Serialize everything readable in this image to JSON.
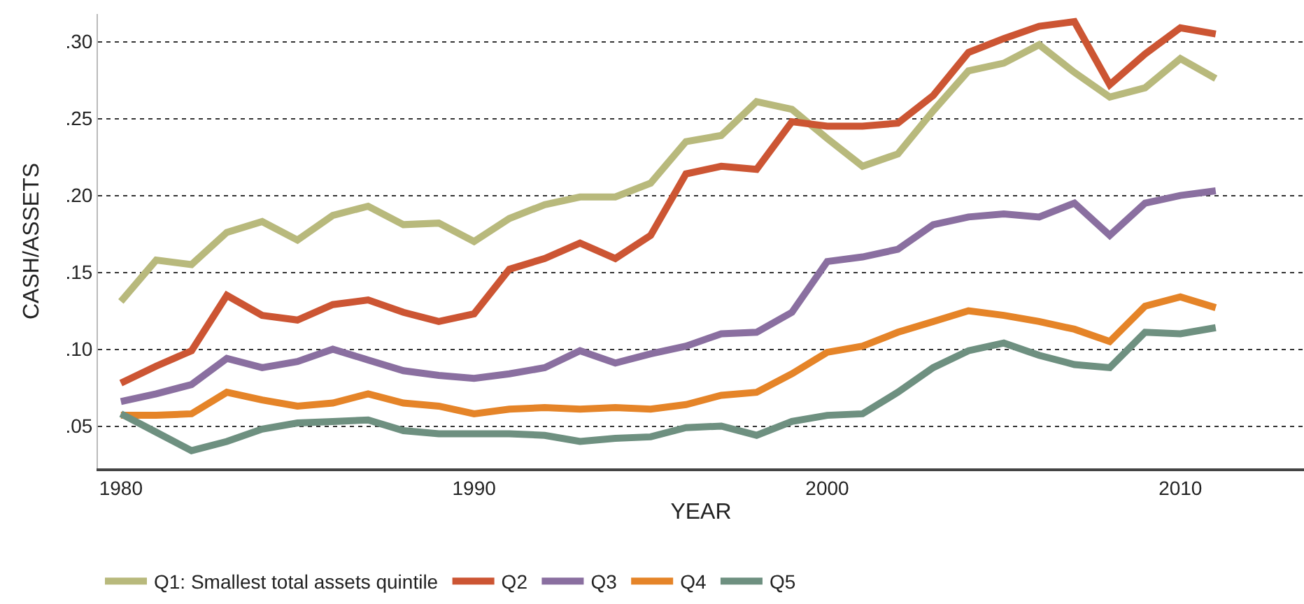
{
  "chart_data": {
    "type": "line",
    "xlabel": "YEAR",
    "ylabel": "CASH/ASSETS",
    "x": [
      1980,
      1981,
      1982,
      1983,
      1984,
      1985,
      1986,
      1987,
      1988,
      1989,
      1990,
      1991,
      1992,
      1993,
      1994,
      1995,
      1996,
      1997,
      1998,
      1999,
      2000,
      2001,
      2002,
      2003,
      2004,
      2005,
      2006,
      2007,
      2008,
      2009,
      2010,
      2011
    ],
    "series": [
      {
        "name": "Q1: Smallest total assets quintile",
        "color": "#b8b97c",
        "values": [
          0.131,
          0.158,
          0.155,
          0.176,
          0.183,
          0.171,
          0.187,
          0.193,
          0.181,
          0.182,
          0.17,
          0.185,
          0.194,
          0.199,
          0.199,
          0.208,
          0.235,
          0.239,
          0.261,
          0.256,
          0.237,
          0.219,
          0.227,
          0.255,
          0.281,
          0.286,
          0.298,
          0.28,
          0.264,
          0.27,
          0.289,
          0.276
        ]
      },
      {
        "name": "Q2",
        "color": "#cc5533",
        "values": [
          0.078,
          0.089,
          0.099,
          0.135,
          0.122,
          0.119,
          0.129,
          0.132,
          0.124,
          0.118,
          0.123,
          0.152,
          0.159,
          0.169,
          0.159,
          0.174,
          0.214,
          0.219,
          0.217,
          0.248,
          0.245,
          0.245,
          0.247,
          0.265,
          0.293,
          0.302,
          0.31,
          0.313,
          0.272,
          0.292,
          0.309,
          0.305
        ]
      },
      {
        "name": "Q3",
        "color": "#8a6fa0",
        "values": [
          0.066,
          0.071,
          0.077,
          0.094,
          0.088,
          0.092,
          0.1,
          0.093,
          0.086,
          0.083,
          0.081,
          0.084,
          0.088,
          0.099,
          0.091,
          0.097,
          0.102,
          0.11,
          0.111,
          0.124,
          0.157,
          0.16,
          0.165,
          0.181,
          0.186,
          0.188,
          0.186,
          0.195,
          0.174,
          0.195,
          0.2,
          0.203
        ]
      },
      {
        "name": "Q4",
        "color": "#e58428",
        "values": [
          0.057,
          0.057,
          0.058,
          0.072,
          0.067,
          0.063,
          0.065,
          0.071,
          0.065,
          0.063,
          0.058,
          0.061,
          0.062,
          0.061,
          0.062,
          0.061,
          0.064,
          0.07,
          0.072,
          0.084,
          0.098,
          0.102,
          0.111,
          0.118,
          0.125,
          0.122,
          0.118,
          0.113,
          0.105,
          0.128,
          0.134,
          0.127
        ]
      },
      {
        "name": "Q5",
        "color": "#6e9080",
        "values": [
          0.058,
          0.046,
          0.034,
          0.04,
          0.048,
          0.052,
          0.053,
          0.054,
          0.047,
          0.045,
          0.045,
          0.045,
          0.044,
          0.04,
          0.042,
          0.043,
          0.049,
          0.05,
          0.044,
          0.053,
          0.057,
          0.058,
          0.072,
          0.088,
          0.099,
          0.104,
          0.096,
          0.09,
          0.088,
          0.111,
          0.11,
          0.114
        ]
      }
    ],
    "xlim": [
      1979.35,
      2013.5
    ],
    "xticks": [
      1980,
      1990,
      2000,
      2010
    ],
    "ylim": [
      0.0225,
      0.318
    ],
    "yticks": [
      {
        "value": 0.05,
        "label": ".05"
      },
      {
        "value": 0.1,
        "label": ".10"
      },
      {
        "value": 0.15,
        "label": ".15"
      },
      {
        "value": 0.2,
        "label": ".20"
      },
      {
        "value": 0.25,
        "label": ".25"
      },
      {
        "value": 0.3,
        "label": ".30"
      }
    ],
    "grid": "y",
    "legend": "bottom",
    "marker": "none",
    "line_style": "solid"
  }
}
